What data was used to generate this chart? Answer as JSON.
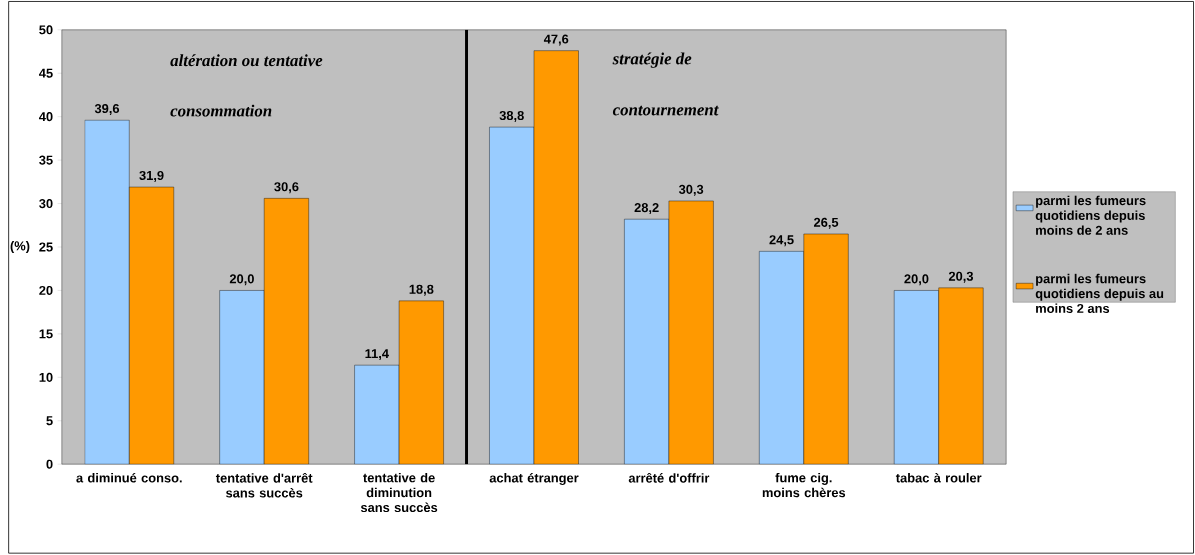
{
  "chart_data": {
    "type": "bar",
    "ylabel": "(%)",
    "categories": [
      "a diminué conso.",
      "tentative d'arrêt sans succès",
      "tentative de diminution sans succès",
      "achat étranger",
      "arrêté d'offrir",
      "fume cig. moins chères",
      "tabac à rouler"
    ],
    "series": [
      {
        "name": "parmi les fumeurs quotidiens depuis moins de 2 ans",
        "color": "#99ccff",
        "values": [
          39.6,
          20.0,
          11.4,
          38.8,
          28.2,
          24.5,
          20.0
        ],
        "value_labels": [
          "39,6",
          "20,0",
          "11,4",
          "38,8",
          "28,2",
          "24,5",
          "20,0"
        ]
      },
      {
        "name": "parmi les fumeurs quotidiens depuis au moins 2 ans",
        "color": "#ff9900",
        "values": [
          31.9,
          30.6,
          18.8,
          47.6,
          30.3,
          26.5,
          20.3
        ],
        "value_labels": [
          "31,9",
          "30,6",
          "18,8",
          "47,6",
          "30,3",
          "26,5",
          "20,3"
        ]
      }
    ],
    "ylim": [
      0,
      50
    ],
    "yticks": [
      0,
      5,
      10,
      15,
      20,
      25,
      30,
      35,
      40,
      45,
      50
    ],
    "annotations": [
      "altération ou tentative",
      "consommation",
      "stratégie de",
      "contournement"
    ],
    "legend": "right"
  }
}
